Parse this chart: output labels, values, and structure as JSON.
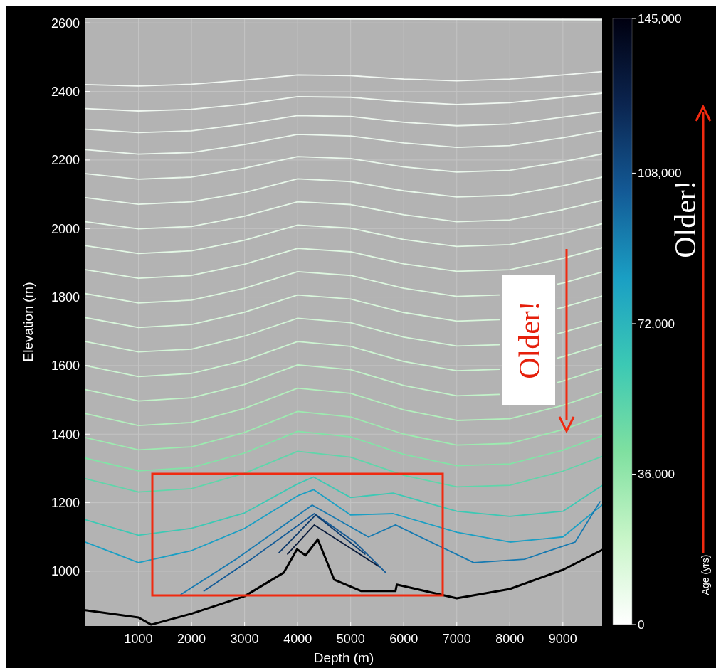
{
  "chart_data": {
    "type": "line",
    "xlabel": "Depth (m)",
    "ylabel": "Elevation (m)",
    "clabel": "Age (yrs)",
    "xlim": [
      0,
      9740
    ],
    "ylim": [
      840,
      2615
    ],
    "xticks": [
      1000,
      2000,
      3000,
      4000,
      5000,
      6000,
      7000,
      8000,
      9000
    ],
    "yticks": [
      1000,
      1200,
      1400,
      1600,
      1800,
      2000,
      2200,
      2400,
      2600
    ],
    "clim": [
      0,
      145000
    ],
    "cticks": [
      0,
      {
        "value": 36000,
        "label": "36,000"
      },
      {
        "value": 72000,
        "label": "72,000"
      },
      {
        "value": 108000,
        "label": "108,000"
      },
      {
        "value": 145000,
        "label": "145,000"
      }
    ],
    "grid": true,
    "annotations": [
      "Older!",
      "Older!"
    ],
    "x": [
      0,
      1000,
      2000,
      3000,
      4000,
      5000,
      6000,
      7000,
      8000,
      9000,
      9740
    ],
    "series": [
      {
        "color": "#f2f8f3",
        "x": [
          0,
          9740
        ],
        "values": [
          2614,
          2609
        ]
      },
      {
        "color": "#f2f8f3",
        "values": [
          2420,
          2416,
          2421,
          2433,
          2448,
          2446,
          2436,
          2431,
          2436,
          2448,
          2458
        ]
      },
      {
        "color": "#f0f8f1",
        "values": [
          2350,
          2343,
          2348,
          2363,
          2385,
          2383,
          2370,
          2362,
          2367,
          2383,
          2395
        ]
      },
      {
        "color": "#eef8ef",
        "values": [
          2290,
          2280,
          2285,
          2305,
          2330,
          2327,
          2310,
          2300,
          2305,
          2325,
          2340
        ]
      },
      {
        "color": "#ecf8ee",
        "values": [
          2230,
          2217,
          2222,
          2245,
          2275,
          2270,
          2250,
          2237,
          2242,
          2265,
          2285
        ]
      },
      {
        "color": "#eaf8ec",
        "values": [
          2160,
          2144,
          2150,
          2176,
          2210,
          2204,
          2180,
          2165,
          2170,
          2195,
          2218
        ]
      },
      {
        "color": "#e8f8ea",
        "values": [
          2090,
          2071,
          2078,
          2105,
          2145,
          2137,
          2110,
          2092,
          2097,
          2125,
          2150
        ]
      },
      {
        "color": "#e6f8e8",
        "values": [
          2020,
          1999,
          2006,
          2036,
          2078,
          2070,
          2040,
          2020,
          2025,
          2055,
          2082
        ]
      },
      {
        "color": "#e3f8e5",
        "values": [
          1950,
          1927,
          1935,
          1966,
          2010,
          2001,
          1968,
          1948,
          1953,
          1985,
          2014
        ]
      },
      {
        "color": "#e0f8e2",
        "values": [
          1880,
          1855,
          1863,
          1896,
          1942,
          1932,
          1897,
          1875,
          1880,
          1913,
          1944
        ]
      },
      {
        "color": "#ddf7df",
        "x": [
          0,
          1000,
          2000,
          3000,
          4000,
          5000,
          6000,
          7000,
          7800,
          8000,
          8900,
          9000,
          9740
        ],
        "values": [
          1810,
          1783,
          1791,
          1826,
          1874,
          1863,
          1826,
          1802,
          1806,
          null,
          1838,
          1841,
          1873
        ]
      },
      {
        "color": "#d9f7dc",
        "x": [
          0,
          1000,
          2000,
          3000,
          4000,
          5000,
          6000,
          7000,
          7800,
          8000,
          8900,
          9000,
          9740
        ],
        "values": [
          1740,
          1711,
          1720,
          1756,
          1806,
          1794,
          1755,
          1730,
          1734,
          null,
          1766,
          1770,
          1803
        ]
      },
      {
        "color": "#d4f6d8",
        "x": [
          0,
          1000,
          2000,
          3000,
          4000,
          5000,
          6000,
          7000,
          7800,
          8000,
          8900,
          9000,
          9740
        ],
        "values": [
          1670,
          1640,
          1648,
          1686,
          1738,
          1725,
          1683,
          1657,
          1661,
          null,
          1693,
          1697,
          1730
        ]
      },
      {
        "color": "#cdf5d2",
        "x": [
          0,
          1000,
          2000,
          3000,
          4000,
          5000,
          6000,
          7000,
          7800,
          8000,
          8900,
          9000,
          9740
        ],
        "values": [
          1600,
          1568,
          1577,
          1615,
          1670,
          1656,
          1612,
          1585,
          1589,
          null,
          1622,
          1626,
          1661
        ]
      },
      {
        "color": "#c2f3c9",
        "x": [
          0,
          1000,
          2000,
          3000,
          4000,
          5000,
          6000,
          7000,
          7800,
          8000,
          8900,
          9000,
          9740
        ],
        "values": [
          1530,
          1497,
          1506,
          1545,
          1602,
          1588,
          1542,
          1512,
          1516,
          null,
          1551,
          1555,
          1592
        ]
      },
      {
        "color": "#b3f0bd",
        "values": [
          1460,
          1425,
          1434,
          1475,
          1534,
          1519,
          1471,
          1440,
          1445,
          1484,
          1523
        ]
      },
      {
        "color": "#9debb0",
        "values": [
          1390,
          1354,
          1363,
          1405,
          1466,
          1450,
          1400,
          1368,
          1373,
          1413,
          1454
        ]
      },
      {
        "color": "#82e4a6",
        "values": [
          1330,
          1293,
          1302,
          1345,
          1408,
          1392,
          1341,
          1308,
          1313,
          1353,
          1395
        ]
      },
      {
        "color": "#5fd6aa",
        "values": [
          1270,
          1231,
          1241,
          1286,
          1350,
          1333,
          1280,
          1246,
          1251,
          1292,
          1335
        ]
      },
      {
        "color": "#3cc9b4",
        "x": [
          0,
          1000,
          2000,
          3000,
          4000,
          4300,
          5000,
          5800,
          7000,
          8000,
          9000,
          9740
        ],
        "values": [
          1150,
          1105,
          1125,
          1170,
          1255,
          1275,
          1215,
          1228,
          1175,
          1160,
          1175,
          1250
        ]
      },
      {
        "color": "#1a9fc4",
        "x": [
          0,
          1000,
          2000,
          3000,
          4000,
          4300,
          5000,
          5800,
          7000,
          8000,
          9000,
          9740
        ],
        "values": [
          1085,
          1025,
          1060,
          1125,
          1220,
          1238,
          1164,
          1168,
          1114,
          1085,
          1100,
          1193
        ]
      },
      {
        "color": "#1679b0",
        "x": [
          1800,
          2840,
          4275,
          5335,
          5845,
          7320,
          8275,
          9230,
          9700
        ],
        "values": [
          932,
          1035,
          1193,
          1100,
          1135,
          1025,
          1035,
          1085,
          1203
        ]
      },
      {
        "color": "#135a96",
        "x": [
          2235,
          3160,
          4315,
          5080,
          5660
        ],
        "values": [
          942,
          1039,
          1168,
          1085,
          996
        ]
      },
      {
        "color": "#0d3a6c",
        "x": [
          3650,
          4340,
          5270
        ],
        "values": [
          1054,
          1164,
          1050
        ]
      },
      {
        "color": "#0a1c3c",
        "x": [
          3810,
          4315,
          5520
        ],
        "values": [
          1050,
          1135,
          1015
        ]
      },
      {
        "color": "#000000",
        "x": [
          0,
          1000,
          1240,
          2000,
          3000,
          3740,
          3990,
          4150,
          4380,
          4690,
          5200,
          5845,
          5870,
          7000,
          8000,
          9000,
          9740
        ],
        "values": [
          886,
          865,
          844,
          876,
          927,
          996,
          1064,
          1046,
          1093,
          975,
          942,
          942,
          961,
          921,
          948,
          1004,
          1062
        ]
      }
    ]
  }
}
